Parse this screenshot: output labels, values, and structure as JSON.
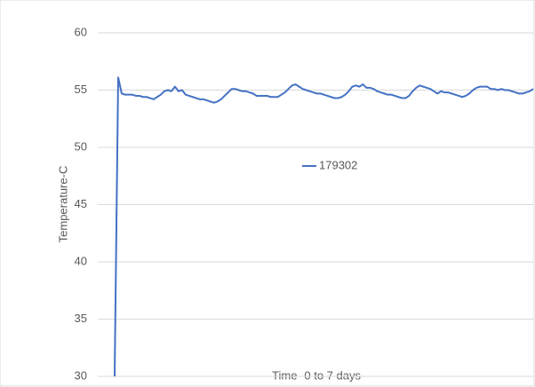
{
  "chart_data": {
    "type": "line",
    "y_label": "Temperature-C",
    "x_label": "Time -0 to 7 days",
    "categories": [
      null,
      null,
      null,
      null,
      null,
      null,
      null,
      null,
      null,
      null,
      null,
      null,
      null,
      null,
      null,
      null,
      null,
      null,
      null,
      null,
      null,
      null,
      null,
      null,
      null,
      null,
      null,
      null,
      null,
      null,
      null,
      null,
      null,
      null,
      null,
      null,
      null,
      null,
      null,
      null,
      null,
      null,
      null,
      null,
      null,
      null,
      null,
      null,
      null,
      null,
      null,
      null,
      null,
      null,
      null,
      null,
      null,
      null,
      null,
      null,
      null,
      null,
      null,
      null,
      null,
      null,
      null,
      null,
      null,
      null,
      null,
      null,
      null,
      null,
      null,
      null,
      null,
      null,
      null,
      null,
      null,
      null,
      null,
      null,
      null,
      null,
      null,
      null,
      null,
      null,
      null,
      null,
      null,
      null,
      null,
      null,
      null,
      null,
      null,
      null,
      null,
      null,
      null,
      null,
      null,
      null,
      null,
      null,
      null,
      null,
      null,
      null,
      null,
      null,
      null,
      null,
      null,
      null,
      null
    ],
    "series": [
      {
        "name": "179302",
        "color": "#4472c4",
        "values": [
          30,
          56.1,
          54.7,
          54.6,
          54.6,
          54.6,
          54.5,
          54.5,
          54.4,
          54.4,
          54.3,
          54.2,
          54.4,
          54.6,
          54.9,
          55.0,
          54.9,
          55.3,
          54.9,
          55.0,
          54.6,
          54.5,
          54.4,
          54.3,
          54.2,
          54.2,
          54.1,
          54.0,
          53.9,
          54.0,
          54.2,
          54.5,
          54.8,
          55.1,
          55.1,
          55.0,
          54.9,
          54.9,
          54.8,
          54.7,
          54.5,
          54.5,
          54.5,
          54.5,
          54.4,
          54.4,
          54.4,
          54.6,
          54.8,
          55.1,
          55.4,
          55.5,
          55.3,
          55.1,
          55.0,
          54.9,
          54.8,
          54.7,
          54.7,
          54.6,
          54.5,
          54.4,
          54.3,
          54.3,
          54.4,
          54.6,
          54.9,
          55.3,
          55.4,
          55.3,
          55.5,
          55.2,
          55.2,
          55.1,
          54.9,
          54.8,
          54.7,
          54.6,
          54.6,
          54.5,
          54.4,
          54.3,
          54.3,
          54.5,
          54.9,
          55.2,
          55.4,
          55.3,
          55.2,
          55.1,
          54.9,
          54.7,
          54.9,
          54.8,
          54.8,
          54.7,
          54.6,
          54.5,
          54.4,
          54.5,
          54.7,
          55.0,
          55.2,
          55.3,
          55.3,
          55.3,
          55.1,
          55.1,
          55.0,
          55.1,
          55.0,
          55.0,
          54.9,
          54.8,
          54.7,
          54.7,
          54.8,
          54.9,
          55.1
        ]
      }
    ],
    "ylim": [
      30,
      60
    ],
    "yticks": [
      30,
      35,
      40,
      45,
      50,
      55,
      60
    ],
    "grid": true
  }
}
